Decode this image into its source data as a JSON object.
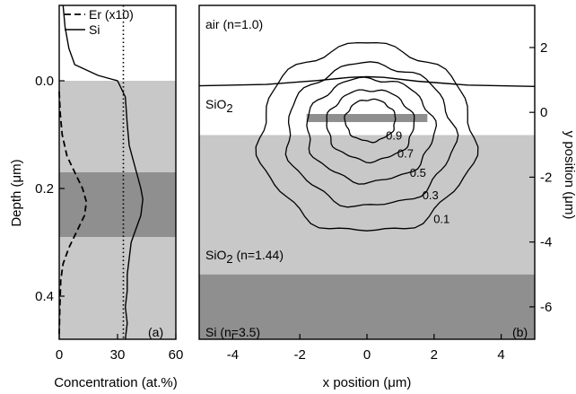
{
  "chart_data": [
    {
      "panel_label": "(a)",
      "type": "line",
      "orientation": "depth-profile",
      "xlabel": "Concentration (at.%)",
      "ylabel": "Depth (μm)",
      "xlim": [
        0,
        60
      ],
      "ylim": [
        0.48,
        -0.14
      ],
      "x_ticks": [
        0,
        30,
        60
      ],
      "y_ticks": [
        0.0,
        0.2,
        0.4
      ],
      "y_tick_labels": [
        "0.0",
        "0.2",
        "0.4"
      ],
      "bands": [
        {
          "from": 0.0,
          "to": 0.17,
          "color": "#c8c8c8"
        },
        {
          "from": 0.17,
          "to": 0.29,
          "color": "#8f8f8f"
        },
        {
          "from": 0.29,
          "to": 0.48,
          "color": "#c8c8c8"
        }
      ],
      "reference_line": {
        "x": 33,
        "style": "dotted"
      },
      "series": [
        {
          "name": "Er (x10)",
          "style": "dashed",
          "points": [
            [
              0,
              0.02
            ],
            [
              0.5,
              0.06
            ],
            [
              1.5,
              0.1
            ],
            [
              4,
              0.14
            ],
            [
              8,
              0.17
            ],
            [
              12,
              0.2
            ],
            [
              14,
              0.225
            ],
            [
              13,
              0.25
            ],
            [
              9,
              0.28
            ],
            [
              5,
              0.31
            ],
            [
              2,
              0.34
            ],
            [
              0.8,
              0.37
            ],
            [
              0.3,
              0.42
            ],
            [
              0,
              0.47
            ]
          ]
        },
        {
          "name": "Si",
          "style": "solid",
          "points": [
            [
              2,
              -0.14
            ],
            [
              3,
              -0.1
            ],
            [
              5,
              -0.06
            ],
            [
              8,
              -0.03
            ],
            [
              20,
              -0.01
            ],
            [
              30,
              0.0
            ],
            [
              34,
              0.03
            ],
            [
              35,
              0.08
            ],
            [
              36,
              0.12
            ],
            [
              39,
              0.16
            ],
            [
              42,
              0.2
            ],
            [
              43,
              0.22
            ],
            [
              42,
              0.25
            ],
            [
              39,
              0.28
            ],
            [
              37,
              0.3
            ],
            [
              36,
              0.33
            ],
            [
              35,
              0.36
            ],
            [
              35,
              0.39
            ],
            [
              34,
              0.42
            ],
            [
              35,
              0.45
            ],
            [
              34,
              0.48
            ]
          ]
        }
      ]
    },
    {
      "panel_label": "(b)",
      "type": "contour",
      "xlabel": "x position (μm)",
      "ylabel": "y position (μm)",
      "xlim": [
        -5,
        5
      ],
      "ylim": [
        -7,
        3.3
      ],
      "x_ticks": [
        -4,
        -2,
        0,
        2,
        4
      ],
      "y_ticks": [
        -6,
        -4,
        -2,
        0,
        2
      ],
      "regions": [
        {
          "name": "air (n=1.0)",
          "y_from": 0.8,
          "y_to": 3.3,
          "color": "#ffffff"
        },
        {
          "name": "SiO2",
          "y_from": -0.7,
          "y_to": 0.8,
          "color": "#ffffff"
        },
        {
          "name": "SiO2 (n=1.44)",
          "y_from": -5.0,
          "y_to": -0.7,
          "color": "#c8c8c8"
        },
        {
          "name": "Si (n=3.5)",
          "y_from": -7.0,
          "y_to": -5.0,
          "color": "#8f8f8f"
        }
      ],
      "core_stripe": {
        "x_from": -1.8,
        "x_to": 1.8,
        "y_from": -0.3,
        "y_to": -0.05,
        "color": "#8f8f8f"
      },
      "labels": {
        "air": "air (n=1.0)",
        "sio2_top": "SiO",
        "sio2_top_sub": "2",
        "sio2_bottom": "SiO",
        "sio2_bottom_sub": "2",
        "sio2_bottom_rest": " (n=1.44)",
        "si": "Si (n=3.5)"
      },
      "contours": [
        {
          "level": "0.1",
          "cx": 0.0,
          "cy": -0.8,
          "rx": 3.2,
          "ry": 2.9
        },
        {
          "level": "0.3",
          "cx": 0.1,
          "cy": -0.7,
          "rx": 2.5,
          "ry": 2.2
        },
        {
          "level": "0.5",
          "cx": 0.1,
          "cy": -0.55,
          "rx": 1.9,
          "ry": 1.6
        },
        {
          "level": "0.7",
          "cx": 0.1,
          "cy": -0.4,
          "rx": 1.3,
          "ry": 1.1
        },
        {
          "level": "0.9",
          "cx": 0.1,
          "cy": -0.25,
          "rx": 0.75,
          "ry": 0.65
        }
      ]
    }
  ]
}
